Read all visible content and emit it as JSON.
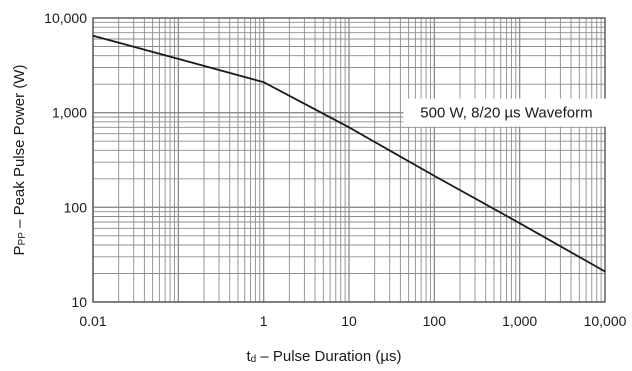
{
  "chart_data": {
    "type": "line",
    "title": "",
    "xlabel": "td – Pulse Duration (µs)",
    "xlabel_main": "t",
    "xlabel_sub": "d",
    "xlabel_rest": " – Pulse Duration (µs)",
    "ylabel": "PPP – Peak Pulse Power (W)",
    "ylabel_main": "P",
    "ylabel_sub": "PP",
    "ylabel_rest": " – Peak Pulse Power (W)",
    "xscale": "log",
    "yscale": "log",
    "xlim": [
      0.01,
      10000
    ],
    "ylim": [
      10,
      10000
    ],
    "grid": true,
    "x_ticks": [
      {
        "value": 0.01,
        "label": "0.01"
      },
      {
        "value": 1,
        "label": "1"
      },
      {
        "value": 10,
        "label": "10"
      },
      {
        "value": 100,
        "label": "100"
      },
      {
        "value": 1000,
        "label": "1,000"
      },
      {
        "value": 10000,
        "label": "10,000"
      }
    ],
    "y_ticks": [
      {
        "value": 10,
        "label": "10"
      },
      {
        "value": 100,
        "label": "100"
      },
      {
        "value": 1000,
        "label": "1,000"
      },
      {
        "value": 10000,
        "label": "10,000"
      }
    ],
    "series": [
      {
        "color": "#1a1a1a",
        "x": [
          0.01,
          0.1,
          1,
          10,
          100,
          1000,
          10000
        ],
        "y": [
          6500,
          3700,
          2100,
          700,
          215,
          68,
          21
        ]
      }
    ],
    "annotations": [
      {
        "text": "500 W, 8/20 µs Waveform",
        "x": 700,
        "y": 1000
      }
    ]
  },
  "colors": {
    "grid": "#8c8c8c",
    "line": "#1a1a1a",
    "background": "#ffffff"
  }
}
